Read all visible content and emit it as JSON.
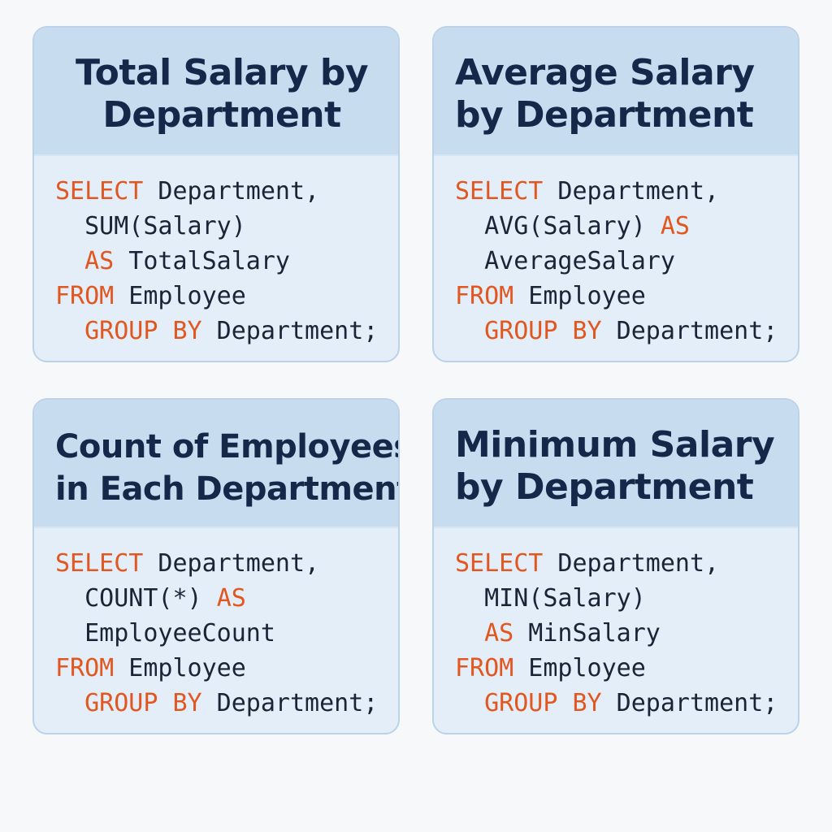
{
  "cards": [
    {
      "title": [
        "Total Salary by",
        "Department"
      ],
      "code": [
        [
          {
            "text": "SELECT",
            "keyword": true
          },
          {
            "text": " Department,"
          }
        ],
        [
          {
            "text": "  SUM(Salary)"
          }
        ],
        [
          {
            "text": "  "
          },
          {
            "text": "AS",
            "keyword": true
          },
          {
            "text": " TotalSalary"
          }
        ],
        [
          {
            "text": "FROM",
            "keyword": true
          },
          {
            "text": " Employee"
          }
        ],
        [
          {
            "text": "  "
          },
          {
            "text": "GROUP BY",
            "keyword": true
          },
          {
            "text": " Department;"
          }
        ]
      ]
    },
    {
      "title": [
        "Average Salary",
        "by Department"
      ],
      "code": [
        [
          {
            "text": "SELECT",
            "keyword": true
          },
          {
            "text": " Department,"
          }
        ],
        [
          {
            "text": "  AVG(Salary) "
          },
          {
            "text": "AS",
            "keyword": true
          }
        ],
        [
          {
            "text": "  AverageSalary"
          }
        ],
        [
          {
            "text": "FROM",
            "keyword": true
          },
          {
            "text": " Employee"
          }
        ],
        [
          {
            "text": "  "
          },
          {
            "text": "GROUP BY",
            "keyword": true
          },
          {
            "text": " Department;"
          }
        ]
      ]
    },
    {
      "title": [
        "Count of Employees",
        "in Each Department"
      ],
      "code": [
        [
          {
            "text": "SELECT",
            "keyword": true
          },
          {
            "text": " Department,"
          }
        ],
        [
          {
            "text": "  COUNT(*) "
          },
          {
            "text": "AS",
            "keyword": true
          }
        ],
        [
          {
            "text": "  EmployeeCount"
          }
        ],
        [
          {
            "text": "FROM",
            "keyword": true
          },
          {
            "text": " Employee"
          }
        ],
        [
          {
            "text": "  "
          },
          {
            "text": "GROUP BY",
            "keyword": true
          },
          {
            "text": " Department;"
          }
        ]
      ]
    },
    {
      "title": [
        "Minimum Salary",
        "by Department"
      ],
      "code": [
        [
          {
            "text": "SELECT",
            "keyword": true
          },
          {
            "text": " Department,"
          }
        ],
        [
          {
            "text": "  MIN(Salary)"
          }
        ],
        [
          {
            "text": "  "
          },
          {
            "text": "AS",
            "keyword": true
          },
          {
            "text": " MinSalary"
          }
        ],
        [
          {
            "text": "FROM",
            "keyword": true
          },
          {
            "text": " Employee"
          }
        ],
        [
          {
            "text": "  "
          },
          {
            "text": "GROUP BY",
            "keyword": true
          },
          {
            "text": " Department;"
          }
        ]
      ]
    }
  ]
}
